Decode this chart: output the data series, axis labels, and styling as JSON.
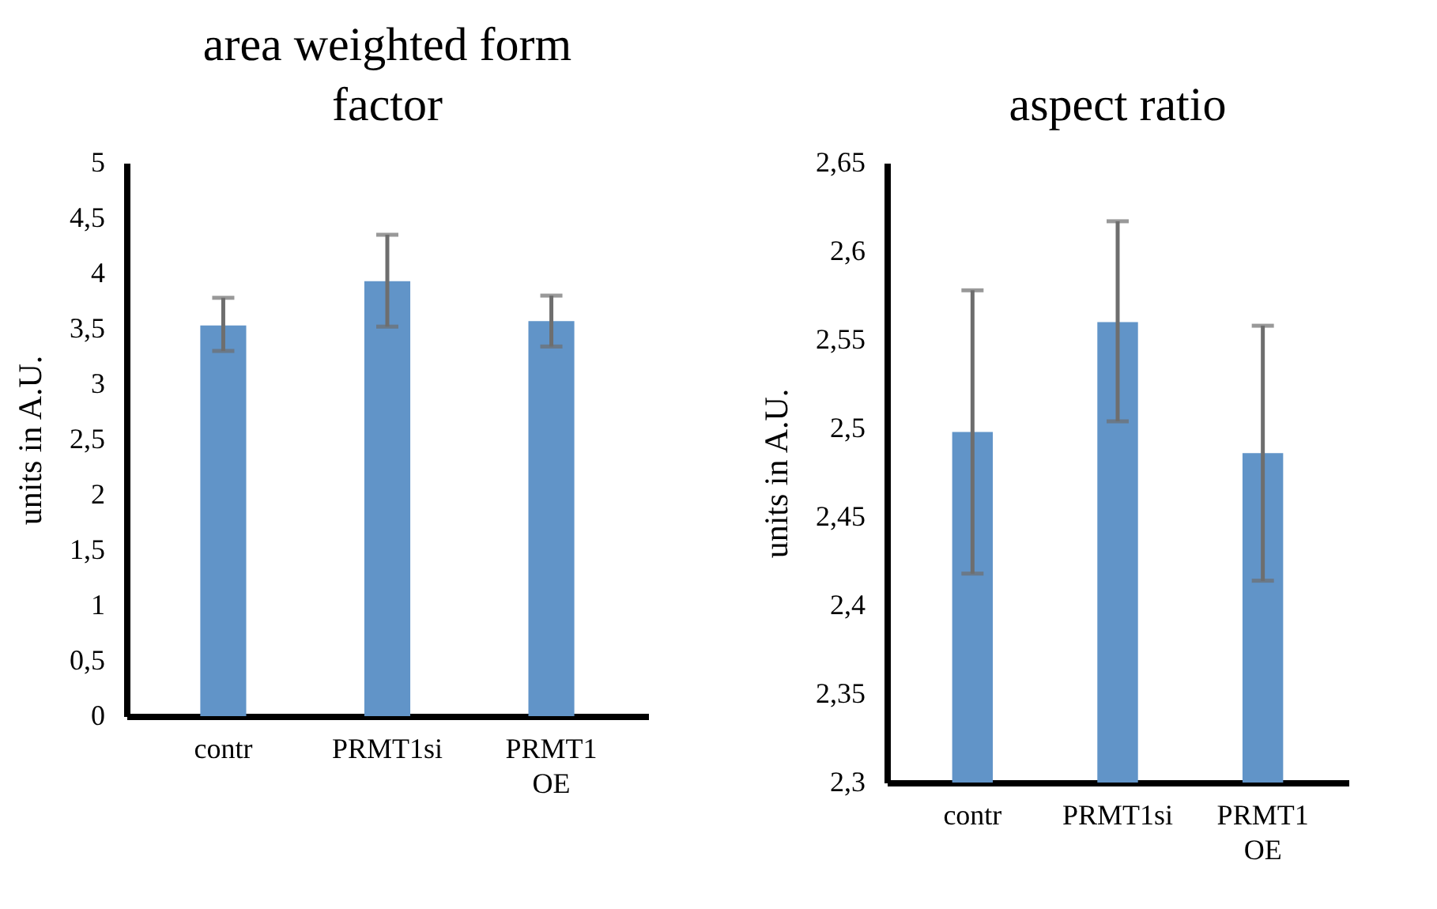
{
  "chart_data": [
    {
      "type": "bar",
      "title": "area weighted form factor",
      "ylabel": "units in A.U.",
      "categories": [
        "contr",
        "PRMT1si",
        "PRMT1 OE"
      ],
      "color": "#6194c8",
      "values": [
        3.53,
        3.93,
        3.57
      ],
      "errors": [
        [
          3.3,
          3.78
        ],
        [
          3.52,
          4.35
        ],
        [
          3.34,
          3.8
        ]
      ],
      "ylim": [
        0,
        5
      ],
      "yticks": [
        0,
        {
          "value": 0.5,
          "label": "0,5"
        },
        1,
        {
          "value": 1.5,
          "label": "1,5"
        },
        2,
        {
          "value": 2.5,
          "label": "2,5"
        },
        3,
        {
          "value": 3.5,
          "label": "3,5"
        },
        4,
        {
          "value": 4.5,
          "label": "4,5"
        },
        5
      ],
      "grid": false
    },
    {
      "type": "bar",
      "title": "aspect ratio",
      "ylabel": "units in A.U.",
      "categories": [
        "contr",
        "PRMT1si",
        "PRMT1 OE"
      ],
      "color": "#6194c8",
      "values": [
        2.498,
        2.56,
        2.486
      ],
      "errors": [
        [
          2.418,
          2.578
        ],
        [
          2.504,
          2.617
        ],
        [
          2.414,
          2.558
        ]
      ],
      "ylim": [
        2.3,
        2.65
      ],
      "yticks": [
        {
          "value": 2.3,
          "label": "2,3"
        },
        {
          "value": 2.35,
          "label": "2,35"
        },
        {
          "value": 2.4,
          "label": "2,4"
        },
        {
          "value": 2.45,
          "label": "2,45"
        },
        {
          "value": 2.5,
          "label": "2,5"
        },
        {
          "value": 2.55,
          "label": "2,55"
        },
        {
          "value": 2.6,
          "label": "2,6"
        },
        {
          "value": 2.65,
          "label": "2,65"
        }
      ],
      "grid": false
    }
  ]
}
